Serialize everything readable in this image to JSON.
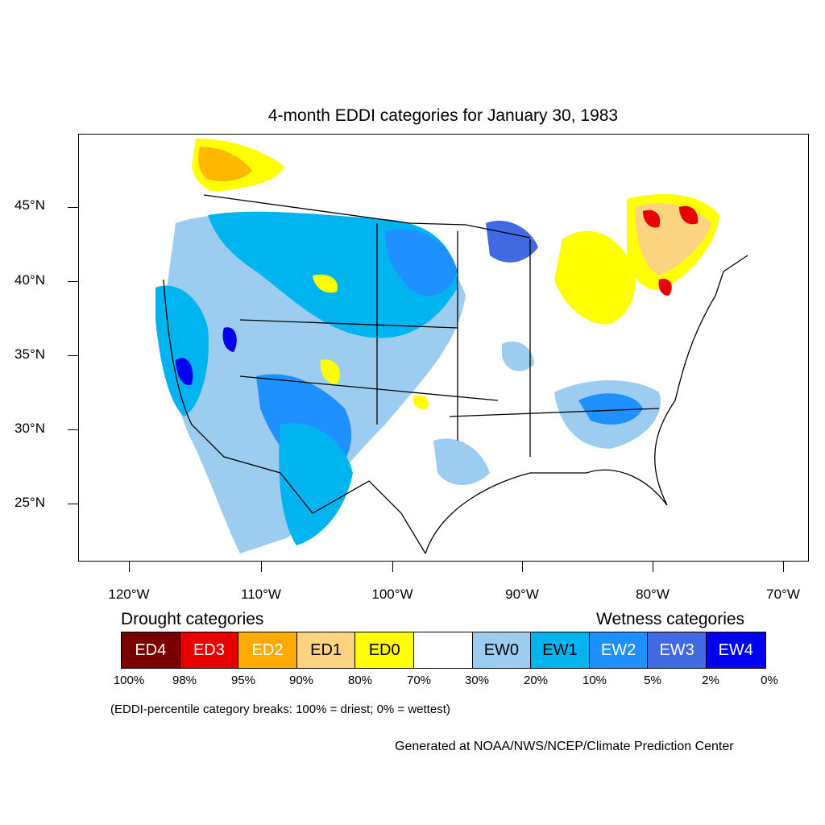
{
  "title": "4-month EDDI categories for January 30, 1983",
  "lat_labels": [
    "45°N",
    "40°N",
    "35°N",
    "30°N",
    "25°N"
  ],
  "lon_labels": [
    "120°W",
    "110°W",
    "100°W",
    "90°W",
    "80°W",
    "70°W"
  ],
  "drought_heading": "Drought categories",
  "wetness_heading": "Wetness categories",
  "legend": [
    {
      "label": "ED4",
      "color": "#7a0000",
      "text_color": "#ffffff"
    },
    {
      "label": "ED3",
      "color": "#e60000",
      "text_color": "#ffffff"
    },
    {
      "label": "ED2",
      "color": "#ffaa00",
      "text_color": "#ffffff"
    },
    {
      "label": "ED1",
      "color": "#fcd37f",
      "text_color": "#000000"
    },
    {
      "label": "ED0",
      "color": "#ffff00",
      "text_color": "#000000"
    },
    {
      "label": "",
      "color": "#ffffff",
      "text_color": "#000000"
    },
    {
      "label": "EW0",
      "color": "#9ccdf0",
      "text_color": "#000000"
    },
    {
      "label": "EW1",
      "color": "#00b4f0",
      "text_color": "#000000"
    },
    {
      "label": "EW2",
      "color": "#1e90ff",
      "text_color": "#ffffff"
    },
    {
      "label": "EW3",
      "color": "#4169e1",
      "text_color": "#ffffff"
    },
    {
      "label": "EW4",
      "color": "#0000f0",
      "text_color": "#ffffff"
    }
  ],
  "percent_labels": [
    "100%",
    "98%",
    "95%",
    "90%",
    "80%",
    "70%",
    "30%",
    "20%",
    "10%",
    "5%",
    "2%",
    "0%"
  ],
  "note": "(EDDI-percentile category breaks: 100% = driest; 0% = wettest)",
  "credit": "Generated at NOAA/NWS/NCEP/Climate Prediction Center"
}
